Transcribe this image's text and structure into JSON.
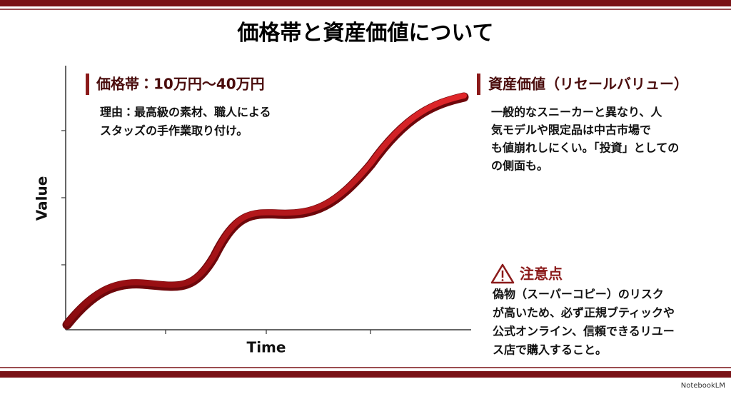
{
  "title": "価格帯と資産価値について",
  "axes": {
    "y_label": "Value",
    "x_label": "Time"
  },
  "price": {
    "heading": "価格帯：10万円〜40万円",
    "body": [
      "理由：最高級の素材、職人による",
      "スタッズの手作業取り付け。"
    ]
  },
  "resale": {
    "heading": "資産価値（リセールバリュー）",
    "body": [
      "一般的なスニーカーと異なり、人",
      "気モデルや限定品は中古市場で",
      "も値崩れしにくい。「投資」としての",
      "の側面も。"
    ]
  },
  "caution": {
    "heading": "注意点",
    "body": [
      "偽物（スーパーコピー）のリスク",
      "が高いため、必ず正規ブティックや",
      "公式オンライン、信頼できるリユー",
      "ス店で購入すること。"
    ]
  },
  "footer": {
    "brand": "NotebookLM"
  }
}
